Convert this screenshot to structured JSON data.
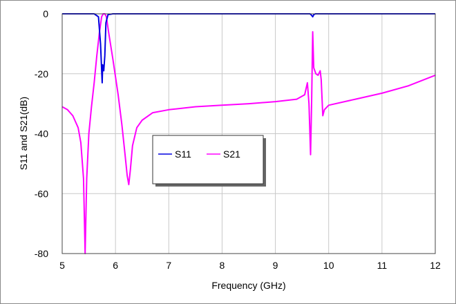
{
  "chart_data": {
    "type": "line",
    "title": "",
    "xlabel": "Frequency (GHz)",
    "ylabel": "S11 and S21(dB)",
    "xlim": [
      5,
      12
    ],
    "ylim": [
      -80,
      0
    ],
    "xticks": [
      5,
      6,
      7,
      8,
      9,
      10,
      11,
      12
    ],
    "yticks": [
      0,
      -20,
      -40,
      -60,
      -80
    ],
    "grid": true,
    "legend": "center",
    "series": [
      {
        "name": "S11",
        "color": "#0000e0",
        "points": [
          [
            5,
            0
          ],
          [
            5.6,
            0
          ],
          [
            5.68,
            -1
          ],
          [
            5.72,
            -10
          ],
          [
            5.75,
            -23
          ],
          [
            5.76,
            -17
          ],
          [
            5.78,
            -19
          ],
          [
            5.8,
            -14
          ],
          [
            5.82,
            -3
          ],
          [
            5.86,
            -0.3
          ],
          [
            5.95,
            0
          ],
          [
            9.65,
            0
          ],
          [
            9.68,
            -0.5
          ],
          [
            9.7,
            -1
          ],
          [
            9.72,
            -0.3
          ],
          [
            9.75,
            0
          ],
          [
            12,
            0
          ]
        ]
      },
      {
        "name": "S21",
        "color": "#ff00ff",
        "points": [
          [
            5,
            -31
          ],
          [
            5.1,
            -32
          ],
          [
            5.2,
            -34
          ],
          [
            5.3,
            -38
          ],
          [
            5.35,
            -43
          ],
          [
            5.4,
            -55
          ],
          [
            5.43,
            -80
          ],
          [
            5.46,
            -55
          ],
          [
            5.5,
            -40
          ],
          [
            5.55,
            -31
          ],
          [
            5.6,
            -23
          ],
          [
            5.65,
            -14
          ],
          [
            5.7,
            -6
          ],
          [
            5.74,
            -1
          ],
          [
            5.77,
            0
          ],
          [
            5.8,
            0
          ],
          [
            5.83,
            -1
          ],
          [
            5.87,
            -6
          ],
          [
            5.95,
            -15
          ],
          [
            6.05,
            -27
          ],
          [
            6.12,
            -37
          ],
          [
            6.18,
            -47
          ],
          [
            6.22,
            -54
          ],
          [
            6.25,
            -57
          ],
          [
            6.28,
            -52
          ],
          [
            6.32,
            -44
          ],
          [
            6.4,
            -38
          ],
          [
            6.5,
            -35.5
          ],
          [
            6.7,
            -33
          ],
          [
            7,
            -32
          ],
          [
            7.5,
            -31
          ],
          [
            8,
            -30.5
          ],
          [
            8.5,
            -30
          ],
          [
            9,
            -29.3
          ],
          [
            9.4,
            -28.5
          ],
          [
            9.55,
            -27
          ],
          [
            9.6,
            -23
          ],
          [
            9.63,
            -30
          ],
          [
            9.66,
            -47
          ],
          [
            9.68,
            -30
          ],
          [
            9.7,
            -6
          ],
          [
            9.72,
            -18
          ],
          [
            9.76,
            -20
          ],
          [
            9.8,
            -20.5
          ],
          [
            9.84,
            -19
          ],
          [
            9.86,
            -22
          ],
          [
            9.89,
            -34
          ],
          [
            9.92,
            -32
          ],
          [
            10,
            -30.5
          ],
          [
            10.5,
            -28.5
          ],
          [
            11,
            -26.5
          ],
          [
            11.5,
            -24
          ],
          [
            12,
            -20.5
          ]
        ]
      }
    ]
  }
}
